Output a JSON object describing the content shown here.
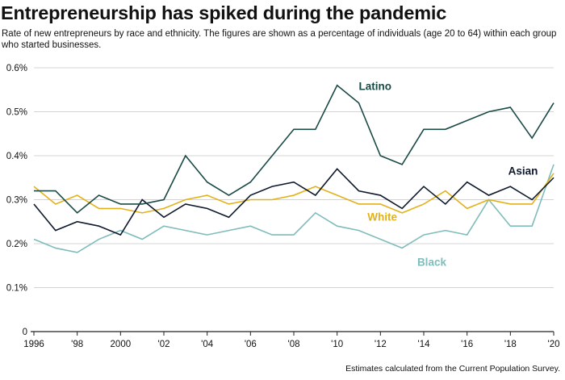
{
  "header": {
    "title": "Entrepreneurship has spiked during the pandemic",
    "subtitle": "Rate of new entrepreneurs by race and ethnicity. The figures are shown as a percentage of individuals (age 20 to 64) within each group who started businesses."
  },
  "footer": {
    "source": "Estimates calculated from the Current Population Survey."
  },
  "chart_data": {
    "type": "line",
    "title": "Entrepreneurship has spiked during the pandemic",
    "xlabel": "",
    "ylabel": "",
    "x": [
      1996,
      1997,
      1998,
      1999,
      2000,
      2001,
      2002,
      2003,
      2004,
      2005,
      2006,
      2007,
      2008,
      2009,
      2010,
      2011,
      2012,
      2013,
      2014,
      2015,
      2016,
      2017,
      2018,
      2019,
      2020
    ],
    "xlim": [
      1996,
      2020
    ],
    "ylim": [
      0,
      0.6
    ],
    "grid": true,
    "x_ticks": [
      {
        "value": 1996,
        "label": "1996"
      },
      {
        "value": 1998,
        "label": "'98"
      },
      {
        "value": 2000,
        "label": "2000"
      },
      {
        "value": 2002,
        "label": "'02"
      },
      {
        "value": 2004,
        "label": "'04"
      },
      {
        "value": 2006,
        "label": "'06"
      },
      {
        "value": 2008,
        "label": "'08"
      },
      {
        "value": 2010,
        "label": "'10"
      },
      {
        "value": 2012,
        "label": "'12"
      },
      {
        "value": 2014,
        "label": "'14"
      },
      {
        "value": 2016,
        "label": "'16"
      },
      {
        "value": 2018,
        "label": "'18"
      },
      {
        "value": 2020,
        "label": "'20"
      }
    ],
    "y_ticks": [
      {
        "value": 0,
        "label": "0"
      },
      {
        "value": 0.1,
        "label": "0.1%"
      },
      {
        "value": 0.2,
        "label": "0.2%"
      },
      {
        "value": 0.3,
        "label": "0.3%"
      },
      {
        "value": 0.4,
        "label": "0.4%"
      },
      {
        "value": 0.5,
        "label": "0.5%"
      },
      {
        "value": 0.6,
        "label": "0.6%"
      }
    ],
    "series": [
      {
        "name": "Latino",
        "color": "#1a4a46",
        "values": [
          0.32,
          0.32,
          0.27,
          0.31,
          0.29,
          0.29,
          0.3,
          0.4,
          0.34,
          0.31,
          0.34,
          0.4,
          0.46,
          0.46,
          0.56,
          0.52,
          0.4,
          0.38,
          0.46,
          0.46,
          0.48,
          0.5,
          0.51,
          0.44,
          0.52
        ],
        "label_anchor": [
          2011,
          0.55
        ]
      },
      {
        "name": "Asian",
        "color": "#0f1a2e",
        "values": [
          0.29,
          0.23,
          0.25,
          0.24,
          0.22,
          0.3,
          0.26,
          0.29,
          0.28,
          0.26,
          0.31,
          0.33,
          0.34,
          0.31,
          0.37,
          0.32,
          0.31,
          0.28,
          0.33,
          0.29,
          0.34,
          0.31,
          0.33,
          0.3,
          0.35
        ],
        "label_anchor": [
          2017.9,
          0.357
        ]
      },
      {
        "name": "White",
        "color": "#e3b11a",
        "values": [
          0.33,
          0.29,
          0.31,
          0.28,
          0.28,
          0.27,
          0.28,
          0.3,
          0.31,
          0.29,
          0.3,
          0.3,
          0.31,
          0.33,
          0.31,
          0.29,
          0.29,
          0.27,
          0.29,
          0.32,
          0.28,
          0.3,
          0.29,
          0.29,
          0.36
        ],
        "label_anchor": [
          2011.4,
          0.252
        ]
      },
      {
        "name": "Black",
        "color": "#7fbcbc",
        "values": [
          0.21,
          0.19,
          0.18,
          0.21,
          0.23,
          0.21,
          0.24,
          0.23,
          0.22,
          0.23,
          0.24,
          0.22,
          0.22,
          0.27,
          0.24,
          0.23,
          0.21,
          0.19,
          0.22,
          0.23,
          0.22,
          0.3,
          0.24,
          0.24,
          0.38
        ],
        "label_anchor": [
          2013.7,
          0.15
        ]
      }
    ]
  }
}
